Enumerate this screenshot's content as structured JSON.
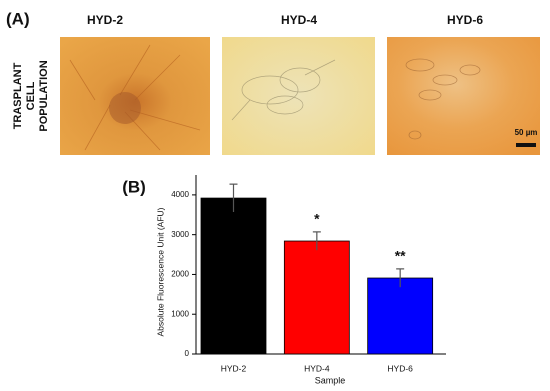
{
  "panel_a": {
    "label": "(A)",
    "images": [
      "HYD-2",
      "HYD-4",
      "HYD-6"
    ],
    "row_label": [
      "TRASPLANT",
      "CELL",
      "POPULATION"
    ],
    "scale_bar": "50 µm"
  },
  "panel_b": {
    "label": "(B)"
  },
  "chart_data": {
    "type": "bar",
    "x_label": "Sample",
    "y_label": "Absolute Fluorescence Unit (AFU)",
    "categories": [
      "HYD-2",
      "HYD-4",
      "HYD-6"
    ],
    "values": [
      3920,
      2840,
      1910
    ],
    "errors": [
      350,
      230,
      230
    ],
    "colors": [
      "#000000",
      "#ff0000",
      "#0000ff"
    ],
    "annotations": [
      null,
      "*",
      "**"
    ],
    "ylim": [
      0,
      4500
    ],
    "yticks": [
      0,
      1000,
      2000,
      3000,
      4000
    ]
  }
}
